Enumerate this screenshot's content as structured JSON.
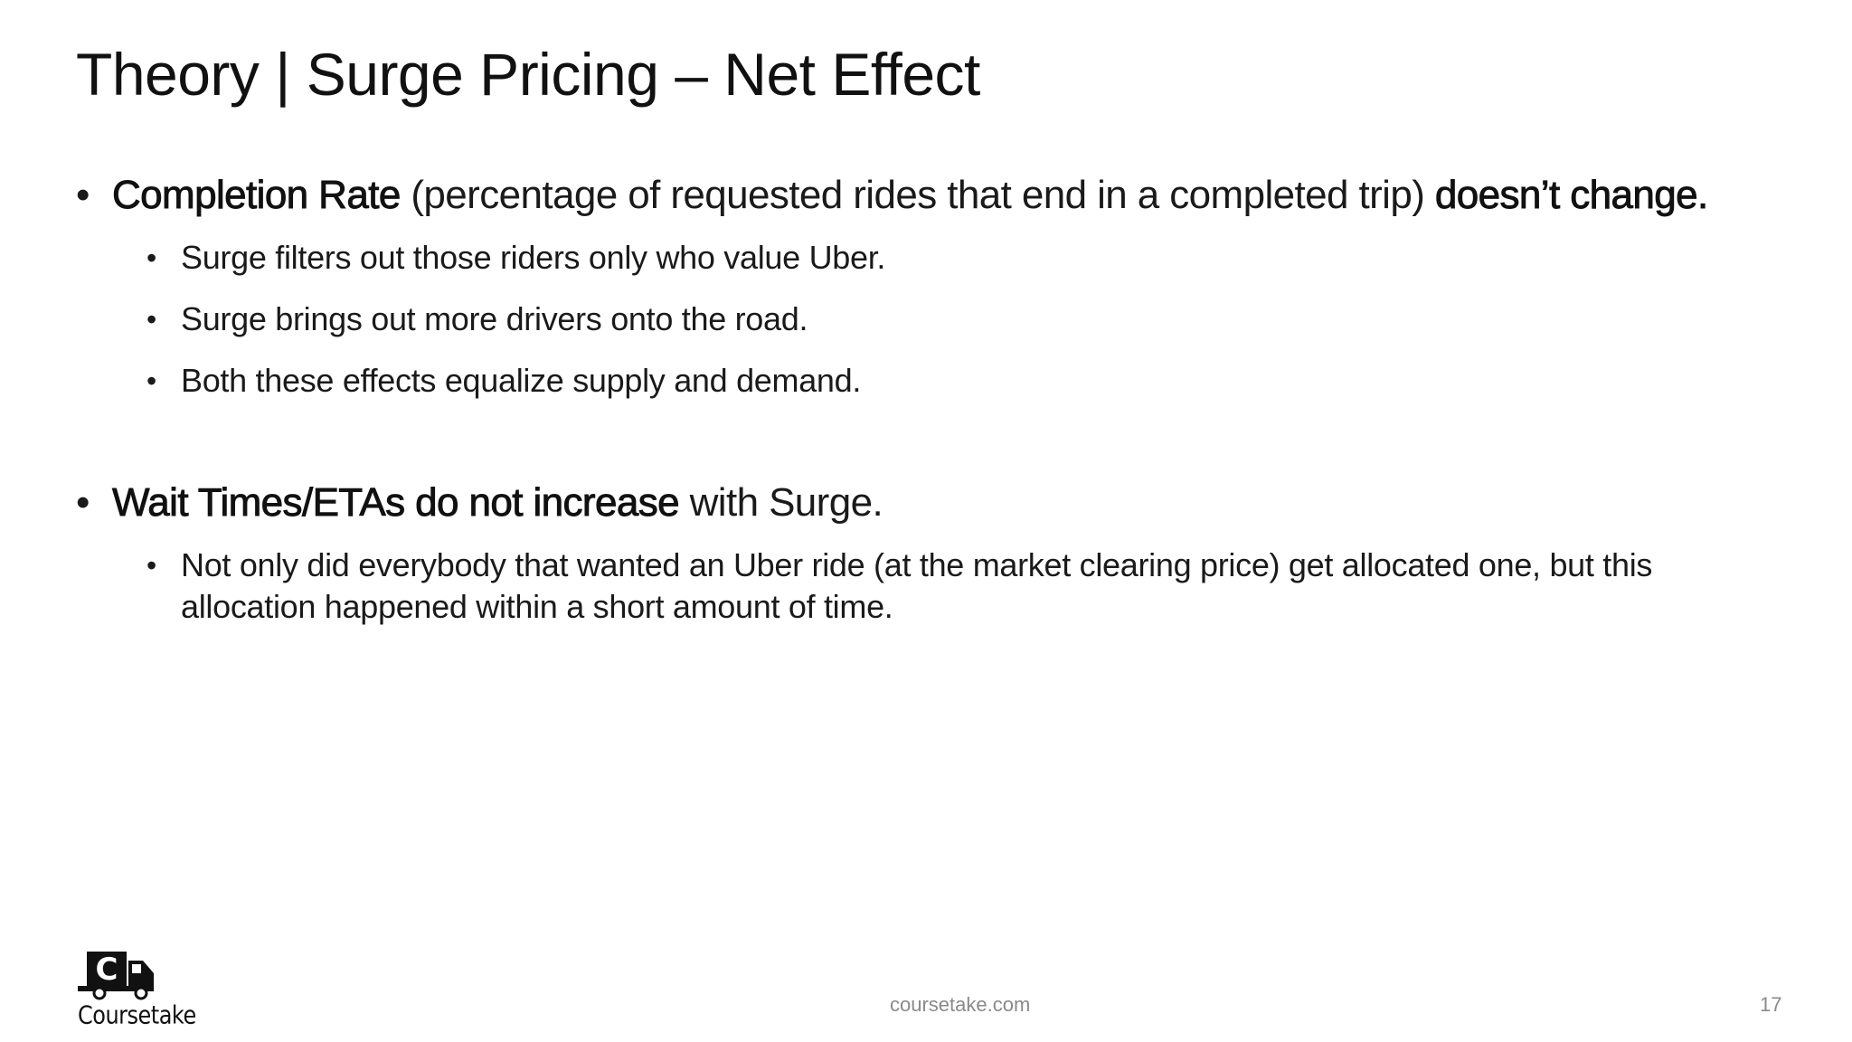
{
  "slide": {
    "title": "Theory | Surge Pricing – Net Effect",
    "bullets": [
      {
        "bold1": "Completion Rate",
        "text1": " (percentage of requested rides that end in a completed trip) ",
        "bold2": "doesn’t change.",
        "sub": [
          "Surge filters out those riders only who value Uber.",
          "Surge brings out more drivers onto the road.",
          "Both these effects equalize supply and demand."
        ]
      },
      {
        "bold1": "Wait Times/ETAs do not increase",
        "text1": " with Surge.",
        "sub": [
          "Not only did everybody that wanted an Uber ride (at the market clearing price) get allocated one, but this allocation happened within a short amount of time."
        ]
      }
    ],
    "bullet_char": "•"
  },
  "footer": {
    "website": "coursetake.com",
    "page_number": "17",
    "logo_letter": "C",
    "logo_text": "Coursetake"
  }
}
